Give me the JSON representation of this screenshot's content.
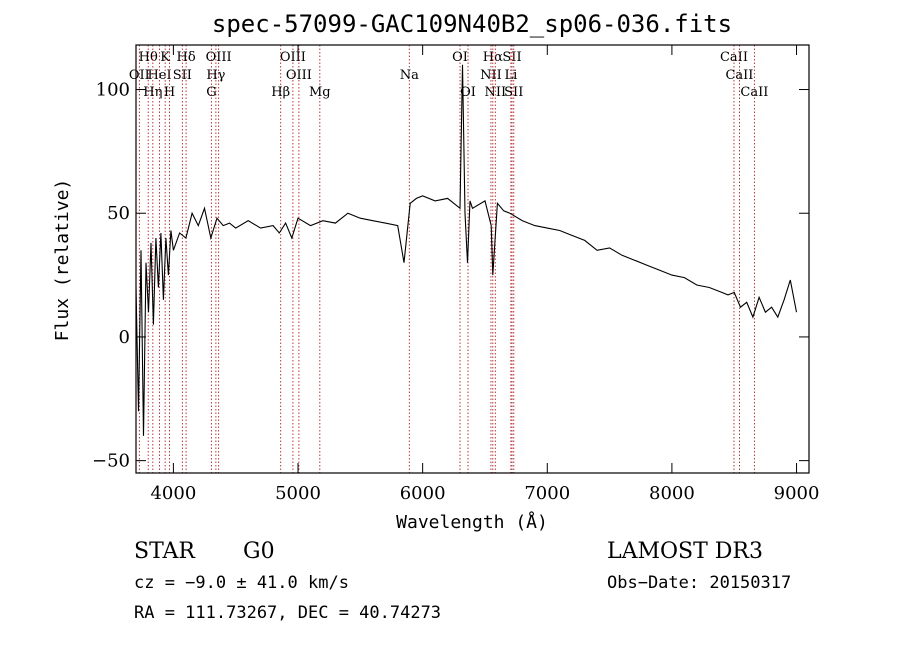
{
  "chart_data": {
    "type": "line",
    "title": "spec-57099-GAC109N40B2_sp06-036.fits",
    "xlabel": "Wavelength (Å)",
    "ylabel": "Flux (relative)",
    "xlim": [
      3700,
      9100
    ],
    "ylim": [
      -55,
      118
    ],
    "xticks": [
      4000,
      5000,
      6000,
      7000,
      8000,
      9000
    ],
    "yticks": [
      -50,
      0,
      50,
      100
    ],
    "spectrum": {
      "x": [
        3700,
        3720,
        3740,
        3760,
        3780,
        3800,
        3820,
        3840,
        3860,
        3880,
        3900,
        3920,
        3940,
        3960,
        3980,
        4000,
        4050,
        4100,
        4150,
        4200,
        4250,
        4300,
        4350,
        4400,
        4450,
        4500,
        4600,
        4700,
        4800,
        4850,
        4900,
        4950,
        5000,
        5100,
        5200,
        5300,
        5400,
        5500,
        5600,
        5700,
        5800,
        5850,
        5900,
        5950,
        6000,
        6100,
        6200,
        6250,
        6300,
        6320,
        6340,
        6360,
        6380,
        6400,
        6500,
        6550,
        6563,
        6600,
        6650,
        6700,
        6800,
        6900,
        7000,
        7100,
        7200,
        7300,
        7400,
        7500,
        7600,
        7700,
        7800,
        7900,
        8000,
        8100,
        8200,
        8300,
        8400,
        8450,
        8500,
        8550,
        8600,
        8650,
        8700,
        8750,
        8800,
        8850,
        8900,
        8950,
        9000
      ],
      "y": [
        20,
        -30,
        35,
        -40,
        30,
        10,
        38,
        5,
        40,
        20,
        42,
        15,
        40,
        25,
        43,
        35,
        42,
        40,
        50,
        45,
        52,
        40,
        48,
        45,
        46,
        44,
        47,
        44,
        45,
        42,
        46,
        40,
        48,
        45,
        47,
        46,
        50,
        48,
        47,
        46,
        45,
        30,
        54,
        56,
        57,
        55,
        56,
        54,
        52,
        110,
        50,
        30,
        55,
        52,
        55,
        45,
        25,
        54,
        51,
        50,
        47,
        45,
        44,
        43,
        41,
        39,
        35,
        36,
        33,
        31,
        29,
        27,
        25,
        24,
        21,
        20,
        18,
        17,
        18,
        12,
        14,
        8,
        16,
        10,
        12,
        8,
        15,
        23,
        10
      ]
    },
    "lines": [
      {
        "label": "Hθ",
        "wave": 3798,
        "row": 0
      },
      {
        "label": "OII",
        "wave": 3727,
        "row": 1
      },
      {
        "label": "Hη",
        "wave": 3835,
        "row": 2
      },
      {
        "label": "K",
        "wave": 3934,
        "row": 0
      },
      {
        "label": "HeI",
        "wave": 3889,
        "row": 1
      },
      {
        "label": "H",
        "wave": 3969,
        "row": 2
      },
      {
        "label": "Hδ",
        "wave": 4102,
        "row": 0
      },
      {
        "label": "SII",
        "wave": 4072,
        "row": 1
      },
      {
        "label": "OIII",
        "wave": 4363,
        "row": 0
      },
      {
        "label": "Hγ",
        "wave": 4341,
        "row": 1
      },
      {
        "label": "G",
        "wave": 4305,
        "row": 2
      },
      {
        "label": "OIII",
        "wave": 4959,
        "row": 0
      },
      {
        "label": "OIII",
        "wave": 5007,
        "row": 1
      },
      {
        "label": "Hβ",
        "wave": 4861,
        "row": 2
      },
      {
        "label": "Mg",
        "wave": 5175,
        "row": 2
      },
      {
        "label": "Na",
        "wave": 5893,
        "row": 1
      },
      {
        "label": "OI",
        "wave": 6300,
        "row": 0
      },
      {
        "label": "OI",
        "wave": 6364,
        "row": 2
      },
      {
        "label": "Hα",
        "wave": 6563,
        "row": 0
      },
      {
        "label": "SII",
        "wave": 6717,
        "row": 0
      },
      {
        "label": "NII",
        "wave": 6548,
        "row": 1
      },
      {
        "label": "Li",
        "wave": 6708,
        "row": 1
      },
      {
        "label": "NII",
        "wave": 6583,
        "row": 2
      },
      {
        "label": "SII",
        "wave": 6731,
        "row": 2
      },
      {
        "label": "CaII",
        "wave": 8498,
        "row": 0
      },
      {
        "label": "CaII",
        "wave": 8542,
        "row": 1
      },
      {
        "label": "CaII",
        "wave": 8662,
        "row": 2
      }
    ]
  },
  "info": {
    "class": "STAR",
    "subclass": "G0",
    "survey": "LAMOST DR3",
    "cz": "cz = −9.0 ± 41.0 km/s",
    "obs_date": "Obs−Date: 20150317",
    "coords": "RA = 111.73267, DEC =  40.74273"
  }
}
